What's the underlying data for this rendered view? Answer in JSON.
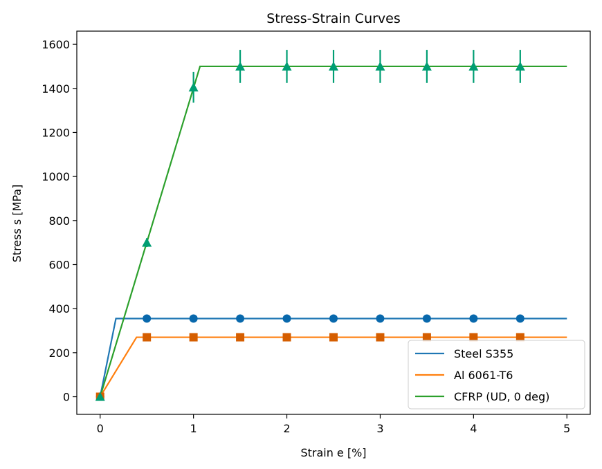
{
  "chart_data": {
    "type": "line",
    "title": "Stress-Strain Curves",
    "xlabel": "Strain e [%]",
    "ylabel": "Stress s [MPa]",
    "xlim": [
      -0.25,
      5.25
    ],
    "ylim": [
      -80,
      1660
    ],
    "xticks": [
      0,
      1,
      2,
      3,
      4,
      5
    ],
    "yticks": [
      0,
      200,
      400,
      600,
      800,
      1000,
      1200,
      1400,
      1600
    ],
    "grid": false,
    "legend_position": "bottom-right",
    "series": [
      {
        "name": "Steel S355",
        "color": "#1f77b4",
        "line": {
          "x": [
            0,
            0.169,
            5
          ],
          "y": [
            0,
            355,
            355
          ]
        },
        "markers": {
          "shape": "circle",
          "color": "#0868ac",
          "x": [
            0,
            0.5,
            1.0,
            1.5,
            2.0,
            2.5,
            3.0,
            3.5,
            4.0,
            4.5
          ],
          "y": [
            0,
            355,
            355,
            355,
            355,
            355,
            355,
            355,
            355,
            355
          ]
        }
      },
      {
        "name": "Al 6061-T6",
        "color": "#ff7f0e",
        "line": {
          "x": [
            0,
            0.39,
            5
          ],
          "y": [
            0,
            270,
            270
          ]
        },
        "markers": {
          "shape": "square",
          "color": "#d55e00",
          "x": [
            0,
            0.5,
            1.0,
            1.5,
            2.0,
            2.5,
            3.0,
            3.5,
            4.0,
            4.5
          ],
          "y": [
            0,
            270,
            270,
            270,
            270,
            270,
            270,
            270,
            270,
            270
          ]
        }
      },
      {
        "name": "CFRP (UD, 0 deg)",
        "color": "#2ca02c",
        "line": {
          "x": [
            0,
            1.07,
            5
          ],
          "y": [
            0,
            1500,
            1500
          ]
        },
        "markers": {
          "shape": "triangle",
          "color": "#009e73",
          "x": [
            0,
            0.5,
            1.0,
            1.5,
            2.0,
            2.5,
            3.0,
            3.5,
            4.0,
            4.5
          ],
          "y": [
            0,
            700,
            1405,
            1500,
            1500,
            1500,
            1500,
            1500,
            1500,
            1500
          ],
          "yerr": [
            0,
            20,
            70,
            75,
            75,
            75,
            75,
            75,
            75,
            75
          ]
        }
      }
    ]
  }
}
